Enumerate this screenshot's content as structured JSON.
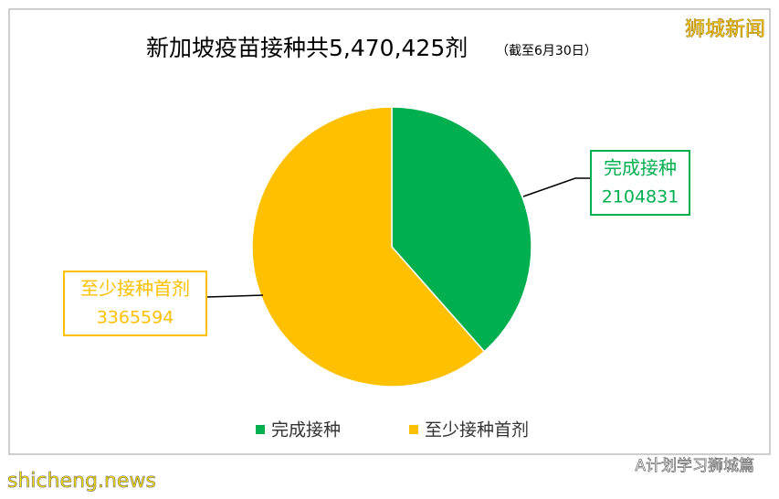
{
  "chart_data": {
    "type": "pie",
    "title": "新加坡疫苗接种共5,470,425剂",
    "subtitle": "（截至6月30日）",
    "categories": [
      "完成接种",
      "至少接种首剂"
    ],
    "values": [
      2104831,
      3365594
    ],
    "colors": [
      "#00b050",
      "#ffc000"
    ],
    "legend": "bottom"
  },
  "watermarks": {
    "top_right": "狮城新闻",
    "bottom_right": "A计划学习狮城篇",
    "bottom_left": "shicheng.news"
  }
}
